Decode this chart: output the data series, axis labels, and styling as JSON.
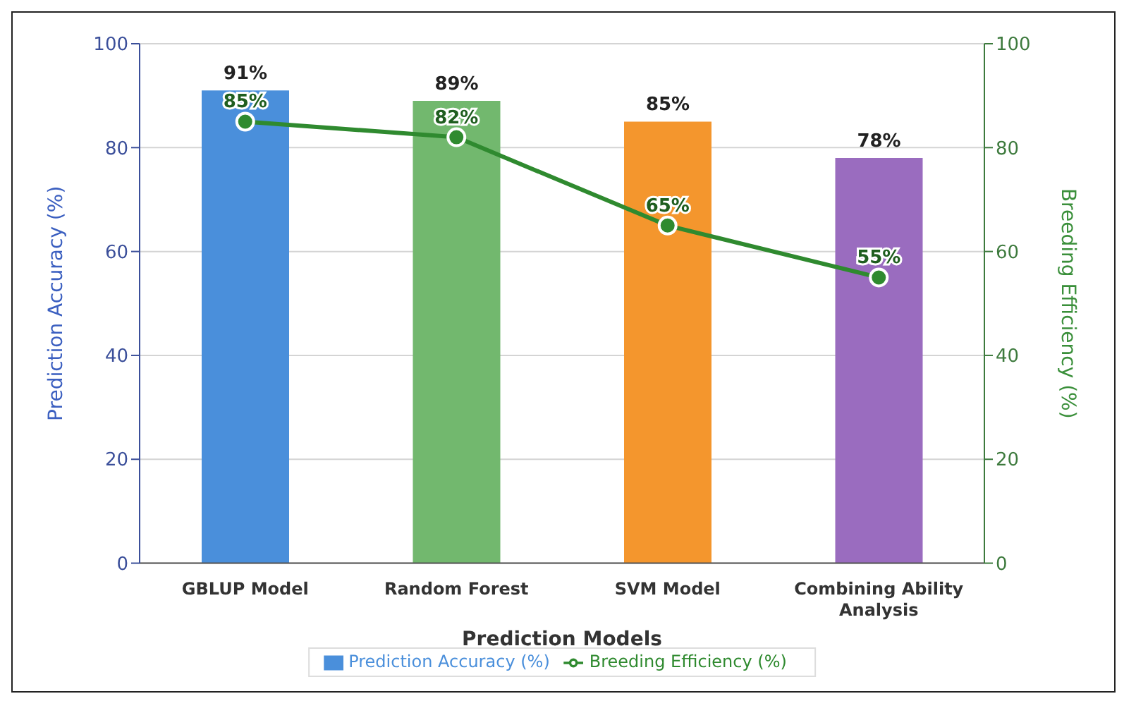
{
  "chart_data": {
    "type": "bar",
    "xlabel": "Prediction Models",
    "ylabel": "Prediction Accuracy (%)",
    "y2label": "Breeding Efficiency (%)",
    "categories": [
      "GBLUP Model",
      "Random Forest",
      "SVM Model",
      "Combining Ability Analysis"
    ],
    "series": [
      {
        "name": "Prediction Accuracy (%)",
        "color": "#4a8fdb",
        "colors": [
          "#4a8fdb",
          "#72b86e",
          "#f4962d",
          "#9a6cbf"
        ],
        "values": [
          91,
          89,
          85,
          78
        ],
        "value_labels": [
          "91%",
          "89%",
          "85%",
          "78%"
        ]
      },
      {
        "name": "Breeding Efficiency (%)",
        "type": "line",
        "axis": "y2",
        "color": "#2f8a2f",
        "values": [
          85,
          82,
          65,
          55
        ],
        "value_labels": [
          "85%",
          "82%",
          "65%",
          "55%"
        ],
        "marker": "circle"
      }
    ],
    "ylim": [
      0,
      100
    ],
    "yticks": [
      0,
      20,
      40,
      60,
      80,
      100
    ],
    "y2lim": [
      0,
      100
    ],
    "y2ticks": [
      0,
      20,
      40,
      60,
      80,
      100
    ],
    "grid": "y",
    "legend": "bottom"
  }
}
